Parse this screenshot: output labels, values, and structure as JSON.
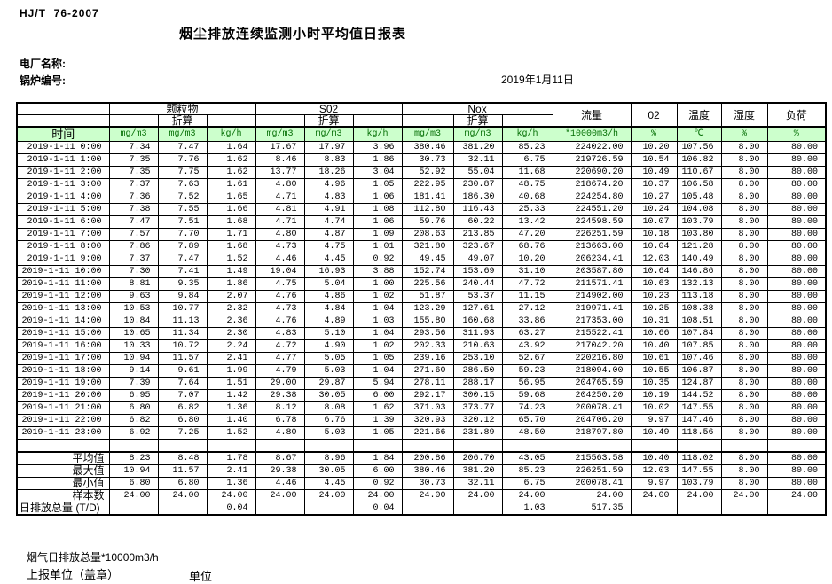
{
  "header": {
    "standard_code": "HJ/T  76-2007",
    "title": "烟尘排放连续监测小时平均值日报表",
    "plant_label": "电厂名称:",
    "boiler_label": "锅炉编号:",
    "date": "2019年1月11日"
  },
  "table": {
    "time_header": "时间",
    "groups": {
      "particulate": "颗粒物",
      "so2": "S02",
      "nox": "Nox",
      "converted": "折算",
      "flow": "流量",
      "o2": "02",
      "temperature": "温度",
      "humidity": "湿度",
      "load": "负荷"
    },
    "units": [
      "mg/m3",
      "mg/m3",
      "kg/h",
      "mg/m3",
      "mg/m3",
      "kg/h",
      "mg/m3",
      "mg/m3",
      "kg/h",
      "*10000m3/h",
      "%",
      "℃",
      "%",
      "%"
    ],
    "rows": [
      {
        "time": "2019-1-11 0:00",
        "values": [
          "7.34",
          "7.47",
          "1.64",
          "17.67",
          "17.97",
          "3.96",
          "380.46",
          "381.20",
          "85.23",
          "224022.00",
          "10.20",
          "107.56",
          "8.00",
          "80.00"
        ]
      },
      {
        "time": "2019-1-11 1:00",
        "values": [
          "7.35",
          "7.76",
          "1.62",
          "8.46",
          "8.83",
          "1.86",
          "30.73",
          "32.11",
          "6.75",
          "219726.59",
          "10.54",
          "106.82",
          "8.00",
          "80.00"
        ]
      },
      {
        "time": "2019-1-11 2:00",
        "values": [
          "7.35",
          "7.75",
          "1.62",
          "13.77",
          "18.26",
          "3.04",
          "52.92",
          "55.04",
          "11.68",
          "220690.20",
          "10.49",
          "110.67",
          "8.00",
          "80.00"
        ]
      },
      {
        "time": "2019-1-11 3:00",
        "values": [
          "7.37",
          "7.63",
          "1.61",
          "4.80",
          "4.96",
          "1.05",
          "222.95",
          "230.87",
          "48.75",
          "218674.20",
          "10.37",
          "106.58",
          "8.00",
          "80.00"
        ]
      },
      {
        "time": "2019-1-11 4:00",
        "values": [
          "7.36",
          "7.52",
          "1.65",
          "4.71",
          "4.83",
          "1.06",
          "181.41",
          "186.30",
          "40.68",
          "224254.80",
          "10.27",
          "105.48",
          "8.00",
          "80.00"
        ]
      },
      {
        "time": "2019-1-11 5:00",
        "values": [
          "7.38",
          "7.55",
          "1.66",
          "4.81",
          "4.91",
          "1.08",
          "112.80",
          "116.43",
          "25.33",
          "224551.20",
          "10.24",
          "104.08",
          "8.00",
          "80.00"
        ]
      },
      {
        "time": "2019-1-11 6:00",
        "values": [
          "7.47",
          "7.51",
          "1.68",
          "4.71",
          "4.74",
          "1.06",
          "59.76",
          "60.22",
          "13.42",
          "224598.59",
          "10.07",
          "103.79",
          "8.00",
          "80.00"
        ]
      },
      {
        "time": "2019-1-11 7:00",
        "values": [
          "7.57",
          "7.70",
          "1.71",
          "4.80",
          "4.87",
          "1.09",
          "208.63",
          "213.85",
          "47.20",
          "226251.59",
          "10.18",
          "103.80",
          "8.00",
          "80.00"
        ]
      },
      {
        "time": "2019-1-11 8:00",
        "values": [
          "7.86",
          "7.89",
          "1.68",
          "4.73",
          "4.75",
          "1.01",
          "321.80",
          "323.67",
          "68.76",
          "213663.00",
          "10.04",
          "121.28",
          "8.00",
          "80.00"
        ]
      },
      {
        "time": "2019-1-11 9:00",
        "values": [
          "7.37",
          "7.47",
          "1.52",
          "4.46",
          "4.45",
          "0.92",
          "49.45",
          "49.07",
          "10.20",
          "206234.41",
          "12.03",
          "140.49",
          "8.00",
          "80.00"
        ]
      },
      {
        "time": "2019-1-11 10:00",
        "values": [
          "7.30",
          "7.41",
          "1.49",
          "19.04",
          "16.93",
          "3.88",
          "152.74",
          "153.69",
          "31.10",
          "203587.80",
          "10.64",
          "146.86",
          "8.00",
          "80.00"
        ]
      },
      {
        "time": "2019-1-11 11:00",
        "values": [
          "8.81",
          "9.35",
          "1.86",
          "4.75",
          "5.04",
          "1.00",
          "225.56",
          "240.44",
          "47.72",
          "211571.41",
          "10.63",
          "132.13",
          "8.00",
          "80.00"
        ]
      },
      {
        "time": "2019-1-11 12:00",
        "values": [
          "9.63",
          "9.84",
          "2.07",
          "4.76",
          "4.86",
          "1.02",
          "51.87",
          "53.37",
          "11.15",
          "214902.00",
          "10.23",
          "113.18",
          "8.00",
          "80.00"
        ]
      },
      {
        "time": "2019-1-11 13:00",
        "values": [
          "10.53",
          "10.77",
          "2.32",
          "4.73",
          "4.84",
          "1.04",
          "123.29",
          "127.61",
          "27.12",
          "219971.41",
          "10.25",
          "108.38",
          "8.00",
          "80.00"
        ]
      },
      {
        "time": "2019-1-11 14:00",
        "values": [
          "10.84",
          "11.13",
          "2.36",
          "4.76",
          "4.89",
          "1.03",
          "155.80",
          "160.68",
          "33.86",
          "217353.00",
          "10.31",
          "108.51",
          "8.00",
          "80.00"
        ]
      },
      {
        "time": "2019-1-11 15:00",
        "values": [
          "10.65",
          "11.34",
          "2.30",
          "4.83",
          "5.10",
          "1.04",
          "293.56",
          "311.93",
          "63.27",
          "215522.41",
          "10.66",
          "107.84",
          "8.00",
          "80.00"
        ]
      },
      {
        "time": "2019-1-11 16:00",
        "values": [
          "10.33",
          "10.72",
          "2.24",
          "4.72",
          "4.90",
          "1.02",
          "202.33",
          "210.63",
          "43.92",
          "217042.20",
          "10.40",
          "107.85",
          "8.00",
          "80.00"
        ]
      },
      {
        "time": "2019-1-11 17:00",
        "values": [
          "10.94",
          "11.57",
          "2.41",
          "4.77",
          "5.05",
          "1.05",
          "239.16",
          "253.10",
          "52.67",
          "220216.80",
          "10.61",
          "107.46",
          "8.00",
          "80.00"
        ]
      },
      {
        "time": "2019-1-11 18:00",
        "values": [
          "9.14",
          "9.61",
          "1.99",
          "4.79",
          "5.03",
          "1.04",
          "271.60",
          "286.50",
          "59.23",
          "218094.00",
          "10.55",
          "106.87",
          "8.00",
          "80.00"
        ]
      },
      {
        "time": "2019-1-11 19:00",
        "values": [
          "7.39",
          "7.64",
          "1.51",
          "29.00",
          "29.87",
          "5.94",
          "278.11",
          "288.17",
          "56.95",
          "204765.59",
          "10.35",
          "124.87",
          "8.00",
          "80.00"
        ]
      },
      {
        "time": "2019-1-11 20:00",
        "values": [
          "6.95",
          "7.07",
          "1.42",
          "29.38",
          "30.05",
          "6.00",
          "292.17",
          "300.15",
          "59.68",
          "204250.20",
          "10.19",
          "144.52",
          "8.00",
          "80.00"
        ]
      },
      {
        "time": "2019-1-11 21:00",
        "values": [
          "6.80",
          "6.82",
          "1.36",
          "8.12",
          "8.08",
          "1.62",
          "371.03",
          "373.77",
          "74.23",
          "200078.41",
          "10.02",
          "147.55",
          "8.00",
          "80.00"
        ]
      },
      {
        "time": "2019-1-11 22:00",
        "values": [
          "6.82",
          "6.80",
          "1.40",
          "6.78",
          "6.76",
          "1.39",
          "320.93",
          "320.12",
          "65.70",
          "204706.20",
          "9.97",
          "147.46",
          "8.00",
          "80.00"
        ]
      },
      {
        "time": "2019-1-11 23:00",
        "values": [
          "6.92",
          "7.25",
          "1.52",
          "4.80",
          "5.03",
          "1.05",
          "221.66",
          "231.89",
          "48.50",
          "218797.80",
          "10.49",
          "118.56",
          "8.00",
          "80.00"
        ]
      }
    ],
    "summary": [
      {
        "label": "平均值",
        "align": "right",
        "values": [
          "8.23",
          "8.48",
          "1.78",
          "8.67",
          "8.96",
          "1.84",
          "200.86",
          "206.70",
          "43.05",
          "215563.58",
          "10.40",
          "118.02",
          "8.00",
          "80.00"
        ]
      },
      {
        "label": "最大值",
        "align": "right",
        "values": [
          "10.94",
          "11.57",
          "2.41",
          "29.38",
          "30.05",
          "6.00",
          "380.46",
          "381.20",
          "85.23",
          "226251.59",
          "12.03",
          "147.55",
          "8.00",
          "80.00"
        ]
      },
      {
        "label": "最小值",
        "align": "right",
        "values": [
          "6.80",
          "6.80",
          "1.36",
          "4.46",
          "4.45",
          "0.92",
          "30.73",
          "32.11",
          "6.75",
          "200078.41",
          "9.97",
          "103.79",
          "8.00",
          "80.00"
        ]
      },
      {
        "label": "样本数",
        "align": "right",
        "values": [
          "24.00",
          "24.00",
          "24.00",
          "24.00",
          "24.00",
          "24.00",
          "24.00",
          "24.00",
          "24.00",
          "24.00",
          "24.00",
          "24.00",
          "24.00",
          "24.00"
        ]
      },
      {
        "label": "日排放总量 (T/D)",
        "align": "left",
        "values": [
          "",
          "",
          "0.04",
          "",
          "",
          "0.04",
          "",
          "",
          "1.03",
          "517.35",
          "",
          "",
          "",
          ""
        ]
      }
    ]
  },
  "footer": {
    "flue_total_label": "烟气日排放总量*10000m3/h",
    "report_unit_label": "上报单位（盖章）",
    "unit_label": "单位"
  },
  "colors": {
    "header_green": "#ccffcc",
    "unit_text_green": "#067006",
    "border": "#000000"
  }
}
